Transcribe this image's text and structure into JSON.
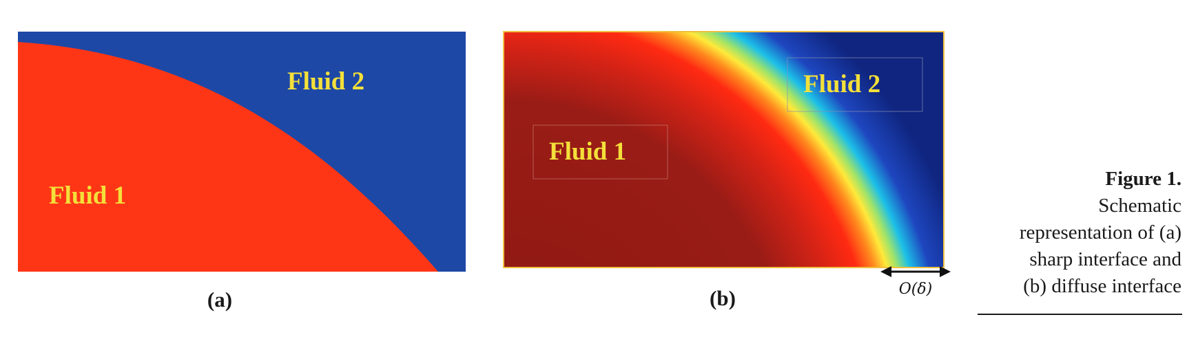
{
  "panel_a": {
    "fluid1_label": "Fluid 1",
    "fluid2_label": "Fluid 2",
    "sublabel": "(a)",
    "colors": {
      "fluid1": "#ff3616",
      "fluid2": "#1e48a6",
      "text": "#f3e03a"
    }
  },
  "panel_b": {
    "fluid1_label": "Fluid 1",
    "fluid2_label": "Fluid 2",
    "sublabel": "(b)",
    "interface_width_label": "O(δ)",
    "colors": {
      "fluid1": "#9a1c16",
      "fluid2": "#0f257f",
      "interface_stops": [
        "#ff2a12",
        "#ffe93a",
        "#9fe36a",
        "#1cc0e8",
        "#1e46bf"
      ],
      "border": "#f0c040",
      "text": "#f3e03a"
    }
  },
  "caption": {
    "title": "Figure 1.",
    "lines": [
      "Schematic",
      "representation of (a)",
      "sharp interface and",
      "(b) diffuse interface"
    ]
  }
}
